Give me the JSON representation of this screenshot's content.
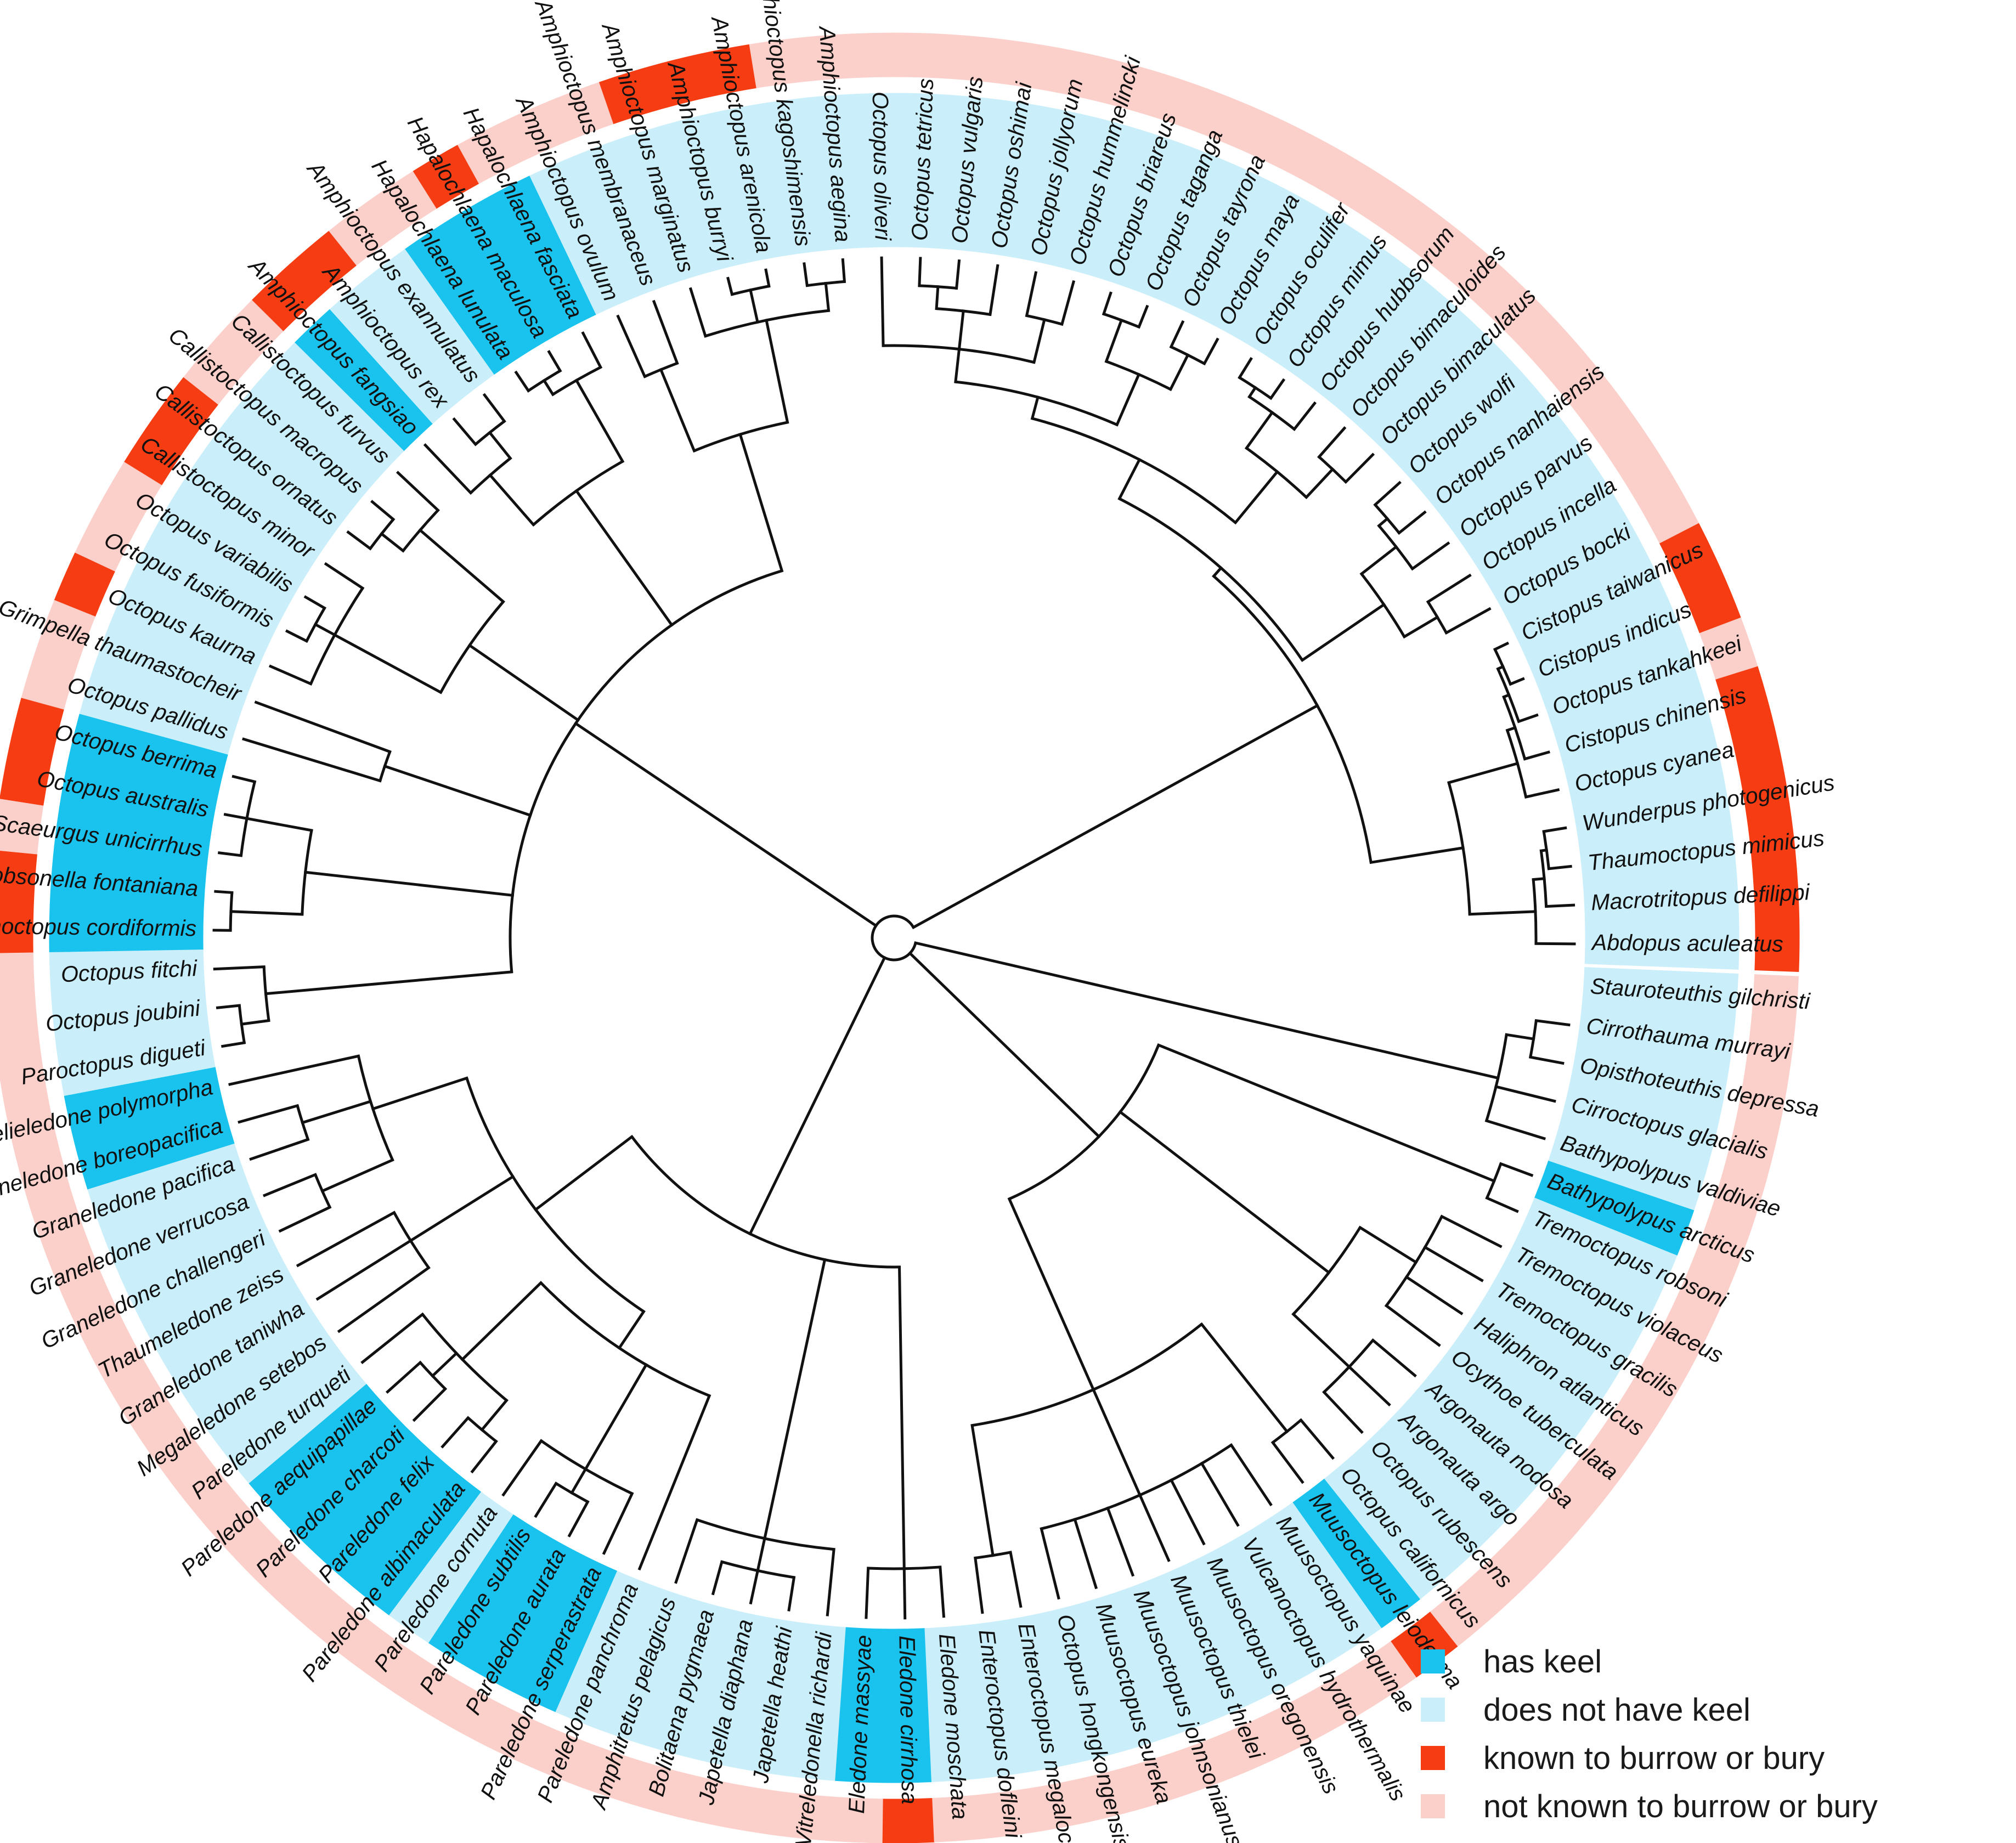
{
  "colors": {
    "keel": "#19c3ee",
    "no_keel": "#cbeffa",
    "burrow": "#f53c12",
    "no_burrow": "#fcd0ca",
    "branch": "#111111"
  },
  "legend": [
    {
      "label": "has keel",
      "color": "#19c3ee"
    },
    {
      "label": "does not have keel",
      "color": "#cbeffa"
    },
    {
      "label": "known to burrow or bury",
      "color": "#f53c12"
    },
    {
      "label": "not known to burrow or bury",
      "color": "#fcd0ca"
    }
  ],
  "taxa": [
    {
      "name": "Abdopus aculeatus",
      "keel": false,
      "burrow": true
    },
    {
      "name": "Macrotritopus defilippi",
      "keel": false,
      "burrow": true
    },
    {
      "name": "Thaumoctopus mimicus",
      "keel": false,
      "burrow": true
    },
    {
      "name": "Wunderpus photogenicus",
      "keel": false,
      "burrow": true
    },
    {
      "name": "Octopus cyanea",
      "keel": false,
      "burrow": true
    },
    {
      "name": "Cistopus chinensis",
      "keel": false,
      "burrow": true
    },
    {
      "name": "Octopus tankahkeei",
      "keel": false,
      "burrow": false
    },
    {
      "name": "Cistopus indicus",
      "keel": false,
      "burrow": true
    },
    {
      "name": "Cistopus taiwanicus",
      "keel": false,
      "burrow": true
    },
    {
      "name": "Octopus bocki",
      "keel": false,
      "burrow": false
    },
    {
      "name": "Octopus incella",
      "keel": false,
      "burrow": false
    },
    {
      "name": "Octopus parvus",
      "keel": false,
      "burrow": false
    },
    {
      "name": "Octopus nanhaiensis",
      "keel": false,
      "burrow": false
    },
    {
      "name": "Octopus wolfi",
      "keel": false,
      "burrow": false
    },
    {
      "name": "Octopus bimaculatus",
      "keel": false,
      "burrow": false
    },
    {
      "name": "Octopus bimaculoides",
      "keel": false,
      "burrow": false
    },
    {
      "name": "Octopus hubbsorum",
      "keel": false,
      "burrow": false
    },
    {
      "name": "Octopus mimus",
      "keel": false,
      "burrow": false
    },
    {
      "name": "Octopus oculifer",
      "keel": false,
      "burrow": false
    },
    {
      "name": "Octopus maya",
      "keel": false,
      "burrow": false
    },
    {
      "name": "Octopus tayrona",
      "keel": false,
      "burrow": false
    },
    {
      "name": "Octopus taganga",
      "keel": false,
      "burrow": false
    },
    {
      "name": "Octopus briareus",
      "keel": false,
      "burrow": false
    },
    {
      "name": "Octopus hummelincki",
      "keel": false,
      "burrow": false
    },
    {
      "name": "Octopus jollyorum",
      "keel": false,
      "burrow": false
    },
    {
      "name": "Octopus oshimai",
      "keel": false,
      "burrow": false
    },
    {
      "name": "Octopus vulgaris",
      "keel": false,
      "burrow": false
    },
    {
      "name": "Octopus tetricus",
      "keel": false,
      "burrow": false
    },
    {
      "name": "Octopus oliveri",
      "keel": false,
      "burrow": false
    },
    {
      "name": "Amphioctopus aegina",
      "keel": false,
      "burrow": false
    },
    {
      "name": "Amphioctopus kagoshimensis",
      "keel": false,
      "burrow": false
    },
    {
      "name": "Amphioctopus arenicola",
      "keel": false,
      "burrow": true
    },
    {
      "name": "Amphioctopus burryi",
      "keel": false,
      "burrow": true
    },
    {
      "name": "Amphioctopus marginatus",
      "keel": false,
      "burrow": true
    },
    {
      "name": "Amphioctopus membranaceus",
      "keel": false,
      "burrow": false
    },
    {
      "name": "Amphioctopus ovulum",
      "keel": false,
      "burrow": false
    },
    {
      "name": "Hapalochlaena fasciata",
      "keel": true,
      "burrow": false
    },
    {
      "name": "Hapalochlaena maculosa",
      "keel": true,
      "burrow": true
    },
    {
      "name": "Hapalochlaena lunulata",
      "keel": true,
      "burrow": false
    },
    {
      "name": "Amphioctopus exannulatus",
      "keel": false,
      "burrow": false
    },
    {
      "name": "Amphioctopus rex",
      "keel": false,
      "burrow": true
    },
    {
      "name": "Amphioctopus fangsiao",
      "keel": true,
      "burrow": true
    },
    {
      "name": "Callistoctopus furvus",
      "keel": false,
      "burrow": false
    },
    {
      "name": "Callistoctopus macropus",
      "keel": false,
      "burrow": false
    },
    {
      "name": "Callistoctopus ornatus",
      "keel": false,
      "burrow": true
    },
    {
      "name": "Callistoctopus minor",
      "keel": false,
      "burrow": true
    },
    {
      "name": "Octopus variabilis",
      "keel": false,
      "burrow": false
    },
    {
      "name": "Octopus fusiformis",
      "keel": false,
      "burrow": false
    },
    {
      "name": "Octopus kaurna",
      "keel": false,
      "burrow": true
    },
    {
      "name": "Grimpella thaumastocheir",
      "keel": false,
      "burrow": false
    },
    {
      "name": "Octopus pallidus",
      "keel": false,
      "burrow": false
    },
    {
      "name": "Octopus berrima",
      "keel": true,
      "burrow": true
    },
    {
      "name": "Octopus australis",
      "keel": true,
      "burrow": true
    },
    {
      "name": "Scaeurgus unicirrhus",
      "keel": true,
      "burrow": false
    },
    {
      "name": "Robsonella fontaniana",
      "keel": true,
      "burrow": true
    },
    {
      "name": "Pinnoctopus cordiformis",
      "keel": true,
      "burrow": true
    },
    {
      "name": "Octopus fitchi",
      "keel": false,
      "burrow": false
    },
    {
      "name": "Octopus joubini",
      "keel": false,
      "burrow": false
    },
    {
      "name": "Paroctopus digueti",
      "keel": false,
      "burrow": false
    },
    {
      "name": "Adelieledone polymorpha",
      "keel": true,
      "burrow": false
    },
    {
      "name": "Graneledone boreopacifica",
      "keel": true,
      "burrow": false
    },
    {
      "name": "Graneledone pacifica",
      "keel": false,
      "burrow": false
    },
    {
      "name": "Graneledone verrucosa",
      "keel": false,
      "burrow": false
    },
    {
      "name": "Graneledone challengeri",
      "keel": false,
      "burrow": false
    },
    {
      "name": "Thaumeledone zeiss",
      "keel": false,
      "burrow": false
    },
    {
      "name": "Graneledone taniwha",
      "keel": false,
      "burrow": false
    },
    {
      "name": "Megaleledone setebos",
      "keel": false,
      "burrow": false
    },
    {
      "name": "Pareledone turqueti",
      "keel": false,
      "burrow": false
    },
    {
      "name": "Pareledone aequipapillae",
      "keel": true,
      "burrow": false
    },
    {
      "name": "Pareledone charcoti",
      "keel": true,
      "burrow": false
    },
    {
      "name": "Pareledone felix",
      "keel": true,
      "burrow": false
    },
    {
      "name": "Pareledone albimaculata",
      "keel": true,
      "burrow": false
    },
    {
      "name": "Pareledone cornuta",
      "keel": false,
      "burrow": false
    },
    {
      "name": "Pareledone subtilis",
      "keel": true,
      "burrow": false
    },
    {
      "name": "Pareledone aurata",
      "keel": true,
      "burrow": false
    },
    {
      "name": "Pareledone serperastrata",
      "keel": true,
      "burrow": false
    },
    {
      "name": "Pareledone panchroma",
      "keel": false,
      "burrow": false
    },
    {
      "name": "Amphitretus pelagicus",
      "keel": false,
      "burrow": false
    },
    {
      "name": "Bolitaena pygmaea",
      "keel": false,
      "burrow": false
    },
    {
      "name": "Japetella diaphana",
      "keel": false,
      "burrow": false
    },
    {
      "name": "Japetella heathi",
      "keel": false,
      "burrow": false
    },
    {
      "name": "Vitreledonella richardi",
      "keel": false,
      "burrow": false
    },
    {
      "name": "Eledone massyae",
      "keel": true,
      "burrow": false
    },
    {
      "name": "Eledone cirrhosa",
      "keel": true,
      "burrow": true
    },
    {
      "name": "Eledone moschata",
      "keel": false,
      "burrow": false
    },
    {
      "name": "Enteroctopus dofleini",
      "keel": false,
      "burrow": false
    },
    {
      "name": "Enteroctopus megalocyathus",
      "keel": false,
      "burrow": false
    },
    {
      "name": "Octopus hongkongensis",
      "keel": false,
      "burrow": false
    },
    {
      "name": "Muusoctopus eureka",
      "keel": false,
      "burrow": false
    },
    {
      "name": "Muusoctopus johnsonianus",
      "keel": false,
      "burrow": false
    },
    {
      "name": "Muusoctopus thielei",
      "keel": false,
      "burrow": false
    },
    {
      "name": "Muusoctopus oregonensis",
      "keel": false,
      "burrow": false
    },
    {
      "name": "Vulcanoctopus hydrothermalis",
      "keel": false,
      "burrow": false
    },
    {
      "name": "Muusoctopus yaquinae",
      "keel": false,
      "burrow": false
    },
    {
      "name": "Muusoctopus leioderma",
      "keel": true,
      "burrow": true
    },
    {
      "name": "Octopus californicus",
      "keel": false,
      "burrow": false
    },
    {
      "name": "Octopus rubescens",
      "keel": false,
      "burrow": false
    },
    {
      "name": "Argonauta argo",
      "keel": false,
      "burrow": false
    },
    {
      "name": "Argonauta nodosa",
      "keel": false,
      "burrow": false
    },
    {
      "name": "Ocythoe tuberculata",
      "keel": false,
      "burrow": false
    },
    {
      "name": "Haliphron atlanticus",
      "keel": false,
      "burrow": false
    },
    {
      "name": "Tremoctopus gracilis",
      "keel": false,
      "burrow": false
    },
    {
      "name": "Tremoctopus violaceus",
      "keel": false,
      "burrow": false
    },
    {
      "name": "Tremoctopus robsoni",
      "keel": false,
      "burrow": false
    },
    {
      "name": "Bathypolypus arcticus",
      "keel": true,
      "burrow": false
    },
    {
      "name": "Bathypolypus valdiviae",
      "keel": false,
      "burrow": false
    },
    {
      "name": "Cirroctopus glacialis",
      "keel": false,
      "burrow": false
    },
    {
      "name": "Opisthoteuthis depressa",
      "keel": false,
      "burrow": false
    },
    {
      "name": "Cirrothauma murrayi",
      "keel": false,
      "burrow": false
    },
    {
      "name": "Stauroteuthis gilchristi",
      "keel": false,
      "burrow": false
    }
  ]
}
